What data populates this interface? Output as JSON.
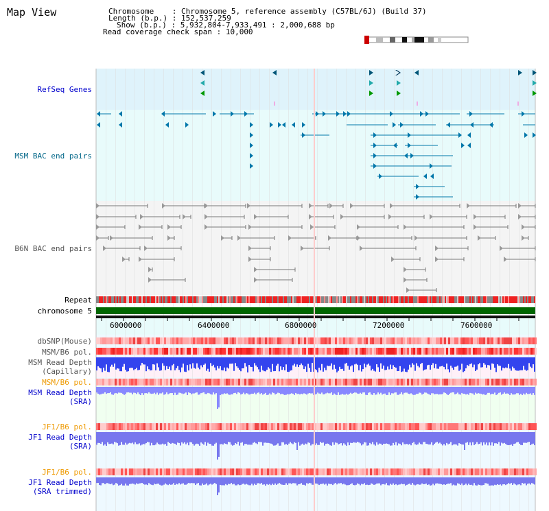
{
  "title": "Map View",
  "header": {
    "chromosome_key": "Chromosome",
    "chromosome_val": ": Chromosome 5, reference assembly (C57BL/6J) (Build 37)",
    "length_key": "Length (b.p.)",
    "length_val": ": 152,537,259",
    "show_key": "Show (b.p.)",
    "show_val": ": 5,932,804-7,933,491 : 2,000,688 bp",
    "coverage_key": "Read coverage check span",
    "coverage_val": ": 10,000"
  },
  "tracks": {
    "refseq": "RefSeq Genes",
    "msm_bac": "MSM BAC end pairs",
    "b6n_bac": "B6N BAC end pairs",
    "repeat": "Repeat",
    "chromosome": "chromosome 5",
    "dbsnp": "dbSNP(Mouse)",
    "msm_b6_pol_1": "MSM/B6 pol.",
    "msm_read_depth_cap_1": "MSM Read Depth",
    "msm_read_depth_cap_2": "(Capillary)",
    "msm_b6_pol_2": "MSM/B6 pol.",
    "msm_read_depth_sra_1": "MSM Read Depth",
    "msm_read_depth_sra_2": "(SRA)",
    "jf1_b6_pol_1": "JF1/B6 pol.",
    "jf1_read_depth_sra_1": "JF1 Read Depth",
    "jf1_read_depth_sra_2": "(SRA)",
    "jf1_b6_pol_2": "JF1/B6 pol.",
    "jf1_read_depth_trim_1": "JF1 Read Depth",
    "jf1_read_depth_trim_2": "(SRA trimmed)"
  },
  "ruler": {
    "ticks": [
      "6000000",
      "6400000",
      "6800000",
      "7200000",
      "7600000"
    ]
  },
  "colors": {
    "refseq_bg": "#dff3fb",
    "msm_bg": "#e8fbfb",
    "b6n_bg": "#f4f4f4",
    "track_label_blue": "#0000cc",
    "track_label_teal": "#006688",
    "track_label_orange": "#ee9900",
    "chromosome_bar": "#006600",
    "depth_blue": "#3333ee",
    "depth_light": "#8888ff"
  }
}
